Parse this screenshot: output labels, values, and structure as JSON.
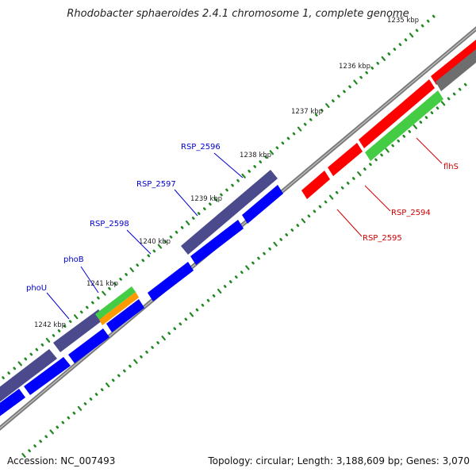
{
  "title": "Rhodobacter sphaeroides 2.4.1 chromosome 1, complete genome",
  "footer": {
    "accession": "Accession: NC_007493",
    "summary": "Topology: circular; Length: 3,188,609 bp; Genes: 3,070"
  },
  "colors": {
    "forward_cds": "#0000ff",
    "reverse_cds": "#ff0000",
    "forward_gene": "#4a4a8c",
    "reverse_gene": "#6e6e6e",
    "highlight_green": "#44cc44",
    "highlight_orange": "#ff9900",
    "backbone": "#777777",
    "tick": "#228822",
    "forward_label": "#0000cc",
    "reverse_label": "#cc0000"
  },
  "ticks": [
    "1235 kbp",
    "1236 kbp",
    "1237 kbp",
    "1238 kbp",
    "1239 kbp",
    "1240 kbp",
    "1241 kbp",
    "1242 kbp"
  ],
  "forward_labels": [
    "RSP_2596",
    "RSP_2597",
    "RSP_2598",
    "phoB",
    "phoU"
  ],
  "reverse_labels": [
    "flhS",
    "RSP_2594",
    "RSP_2595"
  ]
}
